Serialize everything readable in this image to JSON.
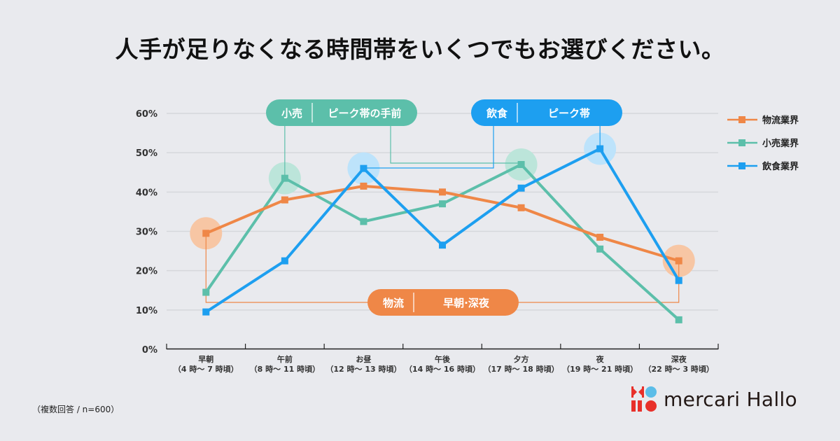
{
  "title": "人手が足りなくなる時間帯をいくつでもお選びください。",
  "note": "（複数回答 / n=600）",
  "brand": {
    "name": "mercari Hallo",
    "colors": {
      "red": "#e8302a",
      "blue": "#5bbde8"
    }
  },
  "colors": {
    "logistics": "#ef8747",
    "retail": "#5cbfaa",
    "food": "#1d9ff0"
  },
  "callouts": [
    {
      "industry": "小売",
      "text": "ピーク帯の手前",
      "series": "retail"
    },
    {
      "industry": "飲食",
      "text": "ピーク帯",
      "series": "food"
    },
    {
      "industry": "物流",
      "text": "早朝·深夜",
      "series": "logistics"
    }
  ],
  "chart_data": {
    "type": "line",
    "title": "人手が足りなくなる時間帯をいくつでもお選びください。",
    "xlabel": "",
    "ylabel": "",
    "ylim": [
      0,
      60
    ],
    "yticks": [
      "0%",
      "10%",
      "20%",
      "30%",
      "40%",
      "50%",
      "60%"
    ],
    "ytick_values": [
      0,
      10,
      20,
      30,
      40,
      50,
      60
    ],
    "grid": true,
    "legend_position": "right",
    "categories": [
      {
        "name": "早朝",
        "range": "（4 時～ 7 時頃）"
      },
      {
        "name": "午前",
        "range": "（8 時～ 11 時頃）"
      },
      {
        "name": "お昼",
        "range": "（12 時～ 13 時頃）"
      },
      {
        "name": "午後",
        "range": "（14 時～ 16 時頃）"
      },
      {
        "name": "夕方",
        "range": "（17 時～ 18 時頃）"
      },
      {
        "name": "夜",
        "range": "（19 時～ 21 時頃）"
      },
      {
        "name": "深夜",
        "range": "（22 時～ 3 時頃）"
      }
    ],
    "series": [
      {
        "key": "logistics",
        "name": "物流業界",
        "values": [
          29.5,
          38,
          41.5,
          40,
          36,
          28.5,
          22.5
        ],
        "highlight": [
          0,
          6
        ]
      },
      {
        "key": "retail",
        "name": "小売業界",
        "values": [
          14.5,
          43.5,
          32.5,
          37,
          47,
          25.5,
          7.5
        ],
        "highlight": [
          1,
          4
        ]
      },
      {
        "key": "food",
        "name": "飲食業界",
        "values": [
          9.5,
          22.5,
          46,
          26.5,
          41,
          51,
          17.5
        ],
        "highlight": [
          2,
          5
        ]
      }
    ]
  }
}
